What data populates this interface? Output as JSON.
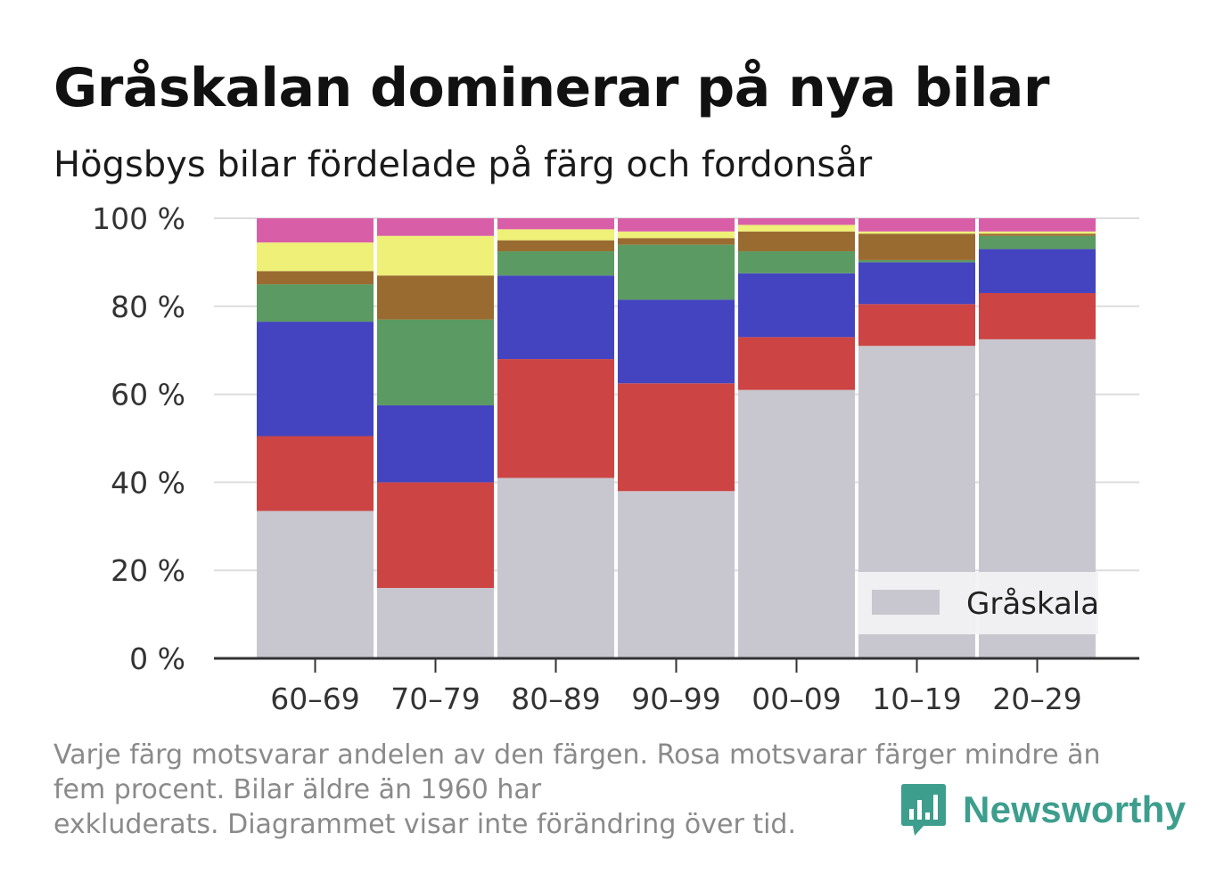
{
  "header": {
    "title": "Gråskalan dominerar på nya bilar",
    "subtitle": "Högsbys bilar fördelade på färg och fordonsår"
  },
  "footnote": {
    "line1": "Varje färg motsvarar andelen av den färgen. Rosa motsvarar färger mindre än",
    "line2": "fem procent. Bilar äldre än 1960 har",
    "line3": "exkluderats. Diagrammet visar inte förändring över tid."
  },
  "brand": {
    "name": "Newsworthy",
    "color": "#3e9e8e"
  },
  "chart_data": {
    "type": "bar",
    "stacked": true,
    "categories": [
      "60–69",
      "70–79",
      "80–89",
      "90–99",
      "00–09",
      "10–19",
      "20–29"
    ],
    "ylim": [
      0,
      100
    ],
    "yticks": [
      0,
      20,
      40,
      60,
      80,
      100
    ],
    "ytick_labels": [
      "0 %",
      "20 %",
      "40 %",
      "60 %",
      "80 %",
      "100 %"
    ],
    "grid": true,
    "legend": {
      "entries": [
        "Gråskala"
      ],
      "position": "bottom-right"
    },
    "series": [
      {
        "name": "Gråskala",
        "color": "#c8c7cf",
        "values": [
          33.5,
          16.0,
          41.0,
          38.0,
          61.0,
          71.0,
          72.5
        ]
      },
      {
        "color": "#cc4444",
        "values": [
          17.0,
          24.0,
          27.0,
          24.5,
          12.0,
          9.5,
          10.5
        ]
      },
      {
        "color": "#4444c0",
        "values": [
          26.0,
          17.5,
          19.0,
          19.0,
          14.5,
          9.5,
          10.0
        ]
      },
      {
        "color": "#5b9a62",
        "values": [
          8.5,
          19.5,
          5.5,
          12.5,
          5.0,
          0.5,
          3.0
        ]
      },
      {
        "color": "#9a6b30",
        "values": [
          3.0,
          10.0,
          2.5,
          1.5,
          4.5,
          6.0,
          0.5
        ]
      },
      {
        "color": "#eef078",
        "values": [
          6.5,
          9.0,
          2.5,
          1.5,
          1.5,
          0.5,
          0.5
        ]
      },
      {
        "color": "#d95ea8",
        "values": [
          5.5,
          4.0,
          2.5,
          3.0,
          1.5,
          3.0,
          3.0
        ]
      }
    ]
  }
}
